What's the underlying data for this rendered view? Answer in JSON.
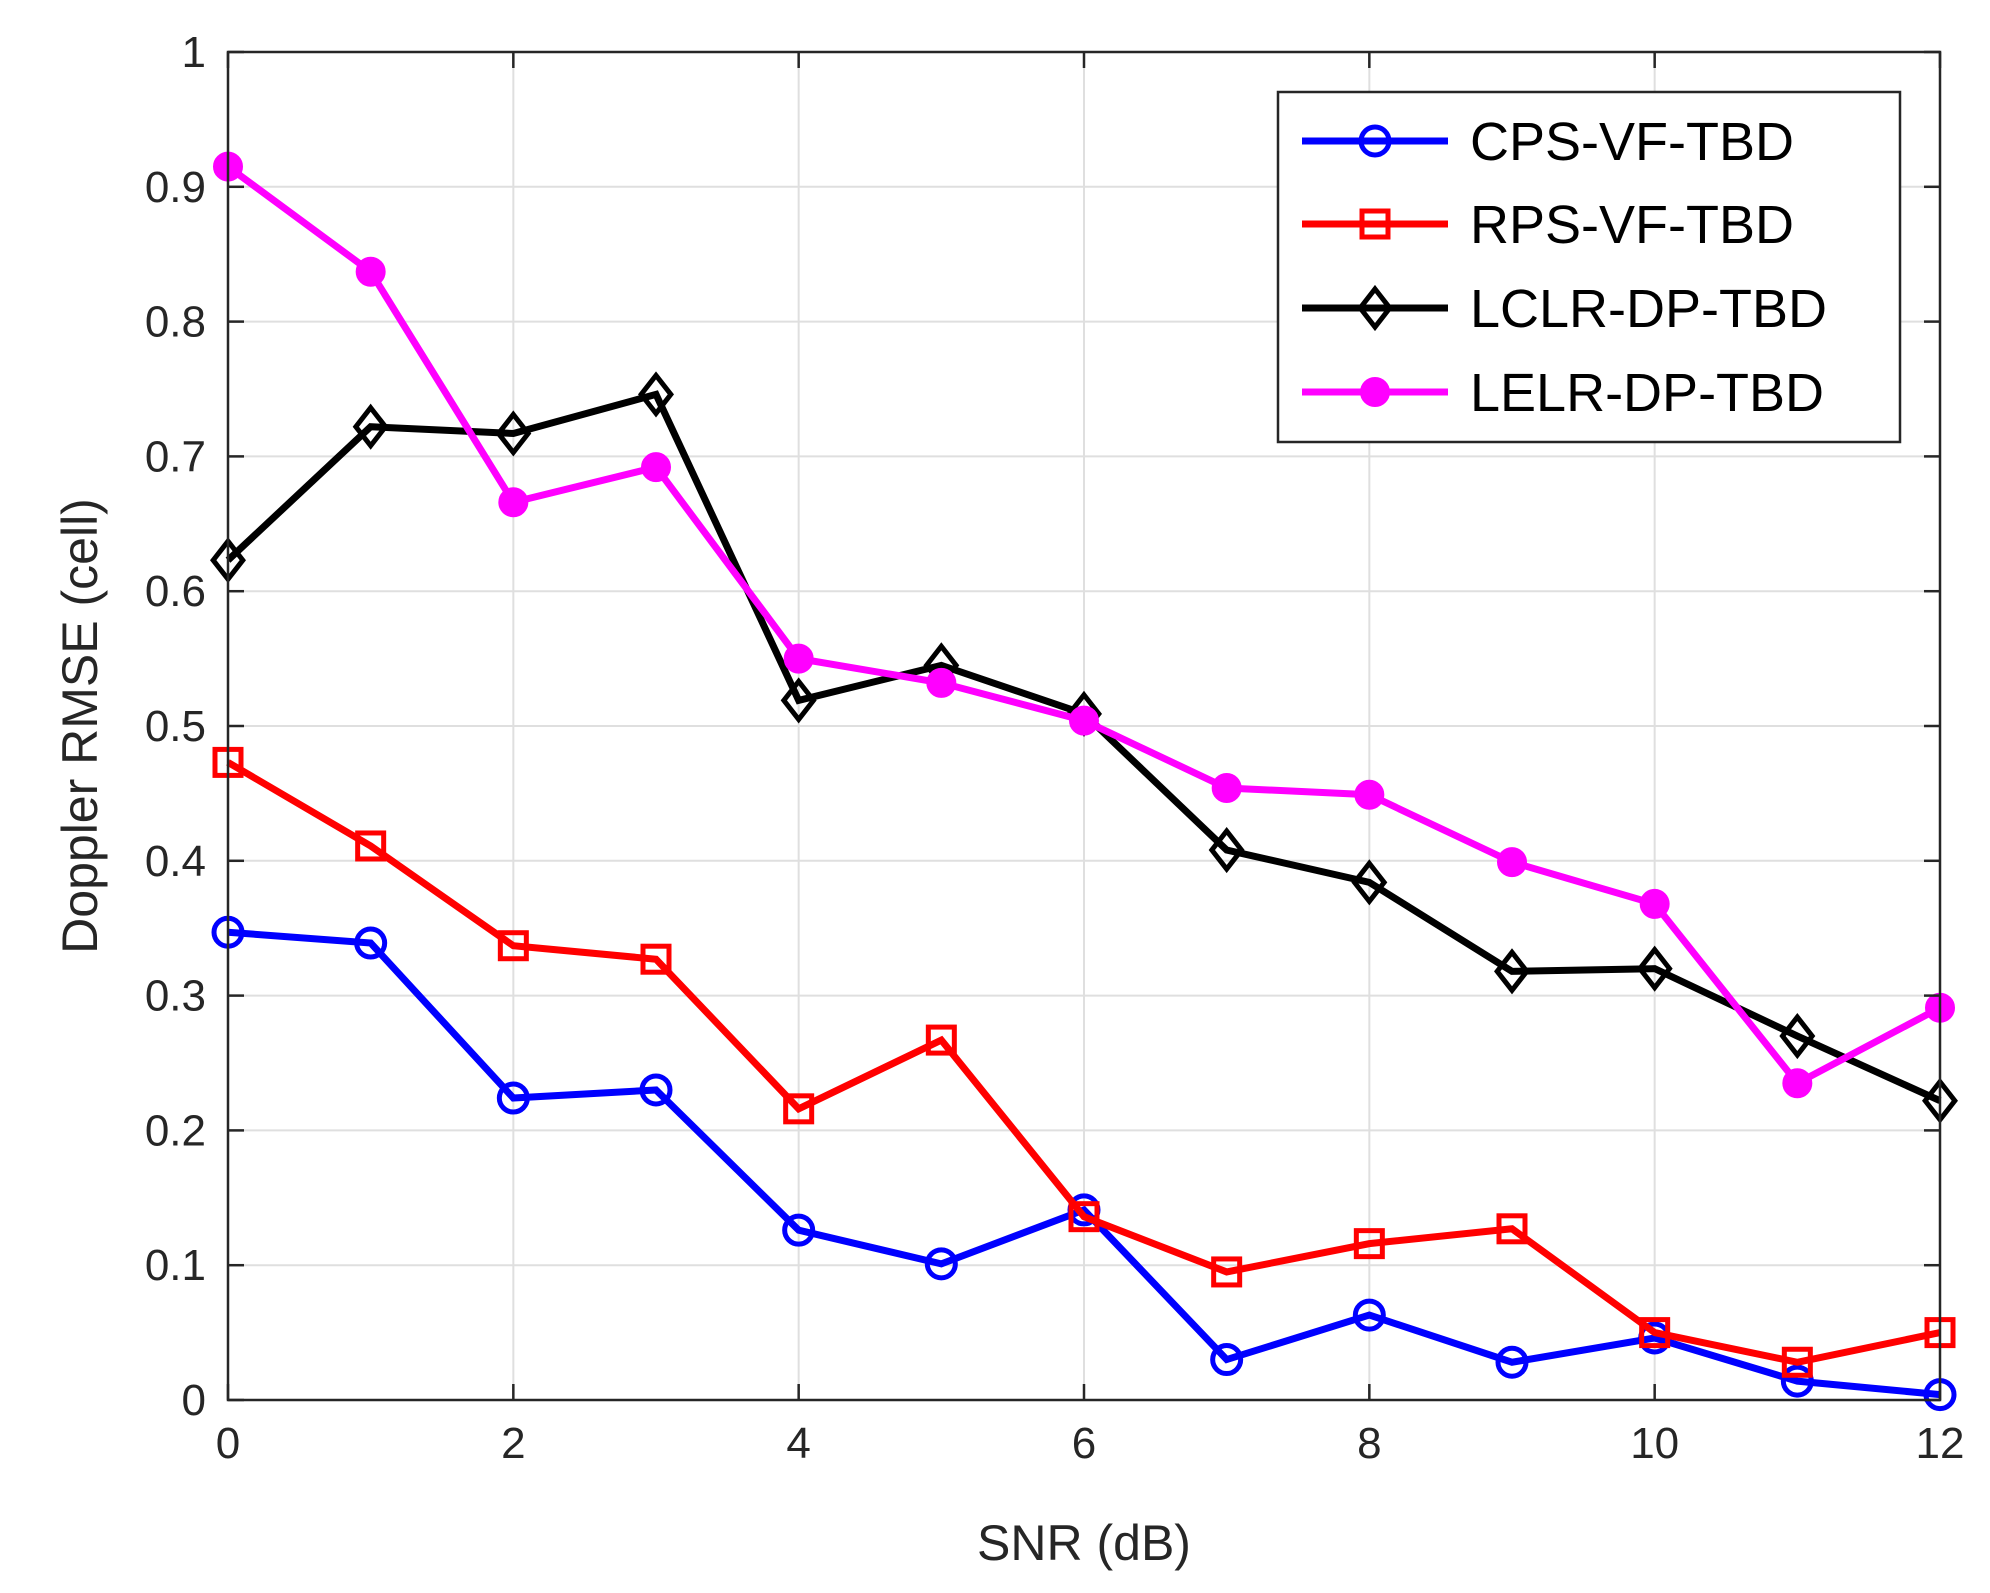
{
  "chart_data": {
    "type": "line",
    "xlabel": "SNR (dB)",
    "ylabel": "Doppler RMSE (cell)",
    "xlim": [
      0,
      12
    ],
    "ylim": [
      0,
      1
    ],
    "xticks": [
      0,
      2,
      4,
      6,
      8,
      10,
      12
    ],
    "xtick_labels": [
      "0",
      "2",
      "4",
      "6",
      "8",
      "10",
      "12"
    ],
    "yticks": [
      0,
      0.1,
      0.2,
      0.3,
      0.4,
      0.5,
      0.6,
      0.7,
      0.8,
      0.9,
      1
    ],
    "ytick_labels": [
      "0",
      "0.1",
      "0.2",
      "0.3",
      "0.4",
      "0.5",
      "0.6",
      "0.7",
      "0.8",
      "0.9",
      "1"
    ],
    "grid": true,
    "legend_position": "top-right",
    "x": [
      0,
      1,
      2,
      3,
      4,
      5,
      6,
      7,
      8,
      9,
      10,
      11,
      12
    ],
    "series": [
      {
        "name": "CPS-VF-TBD",
        "color": "#0000ff",
        "marker": "circle-open",
        "values": [
          0.347,
          0.339,
          0.224,
          0.23,
          0.126,
          0.101,
          0.141,
          0.03,
          0.063,
          0.028,
          0.046,
          0.014,
          0.004
        ]
      },
      {
        "name": "RPS-VF-TBD",
        "color": "#ff0000",
        "marker": "square-open",
        "values": [
          0.473,
          0.411,
          0.337,
          0.327,
          0.216,
          0.267,
          0.136,
          0.095,
          0.116,
          0.127,
          0.05,
          0.028,
          0.05
        ]
      },
      {
        "name": "LCLR-DP-TBD",
        "color": "#000000",
        "marker": "diamond-open",
        "values": [
          0.623,
          0.722,
          0.717,
          0.746,
          0.519,
          0.545,
          0.509,
          0.408,
          0.384,
          0.318,
          0.32,
          0.27,
          0.222
        ]
      },
      {
        "name": "LELR-DP-TBD",
        "color": "#ff00ff",
        "marker": "circle-filled",
        "values": [
          0.915,
          0.837,
          0.666,
          0.692,
          0.55,
          0.532,
          0.504,
          0.454,
          0.449,
          0.399,
          0.368,
          0.235,
          0.291
        ]
      }
    ]
  }
}
